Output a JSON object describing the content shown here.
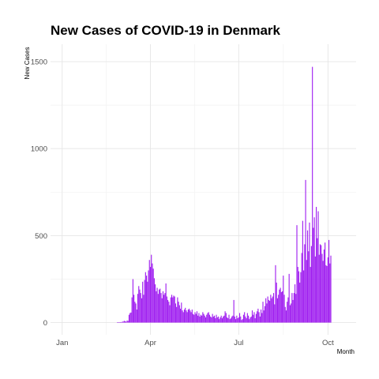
{
  "chart_data": {
    "type": "bar",
    "title": "New Cases of COVID-19 in Denmark",
    "xlabel": "Month",
    "ylabel": "New Cases",
    "x_tick_labels": [
      "Jan",
      "Apr",
      "Jul",
      "Oct"
    ],
    "x_ticks": [
      "2020-01-01",
      "2020-04-01",
      "2020-07-01",
      "2020-10-01"
    ],
    "x_range": [
      "2019-12-20",
      "2020-10-30"
    ],
    "y_ticks": [
      0,
      500,
      1000,
      1500
    ],
    "y_tick_labels": [
      "0",
      "500",
      "1000",
      "1500"
    ],
    "ylim": [
      -70,
      1600
    ],
    "grid": true,
    "bar_color": "#a020f0",
    "start_date": "2020-02-27",
    "values": [
      1,
      0,
      2,
      3,
      2,
      5,
      6,
      10,
      8,
      5,
      12,
      10,
      45,
      55,
      58,
      145,
      250,
      160,
      120,
      110,
      75,
      165,
      210,
      190,
      170,
      140,
      235,
      160,
      245,
      290,
      270,
      235,
      300,
      360,
      320,
      390,
      340,
      310,
      255,
      220,
      180,
      200,
      165,
      190,
      195,
      170,
      140,
      180,
      160,
      170,
      225,
      150,
      130,
      120,
      100,
      145,
      160,
      145,
      155,
      150,
      110,
      90,
      145,
      120,
      100,
      80,
      115,
      70,
      60,
      75,
      85,
      70,
      60,
      75,
      80,
      70,
      60,
      75,
      50,
      45,
      60,
      50,
      65,
      40,
      55,
      35,
      45,
      40,
      60,
      50,
      40,
      30,
      45,
      55,
      60,
      45,
      35,
      30,
      50,
      35,
      40,
      25,
      45,
      30,
      35,
      20,
      30,
      40,
      25,
      35,
      40,
      65,
      55,
      30,
      25,
      45,
      20,
      25,
      35,
      40,
      130,
      35,
      20,
      40,
      25,
      30,
      55,
      35,
      15,
      20,
      45,
      60,
      35,
      25,
      55,
      40,
      20,
      30,
      35,
      70,
      45,
      60,
      25,
      50,
      65,
      80,
      60,
      35,
      75,
      55,
      120,
      70,
      95,
      140,
      110,
      150,
      130,
      125,
      160,
      140,
      150,
      170,
      105,
      330,
      230,
      140,
      160,
      190,
      200,
      175,
      180,
      270,
      160,
      90,
      70,
      120,
      145,
      280,
      100,
      110,
      170,
      130,
      170,
      220,
      165,
      560,
      320,
      295,
      230,
      290,
      400,
      585,
      300,
      450,
      820,
      360,
      530,
      410,
      575,
      320,
      440,
      1470,
      545,
      605,
      380,
      665,
      485,
      640,
      390,
      450,
      445,
      395,
      355,
      420,
      460,
      330,
      325,
      375,
      475,
      340,
      385
    ]
  }
}
